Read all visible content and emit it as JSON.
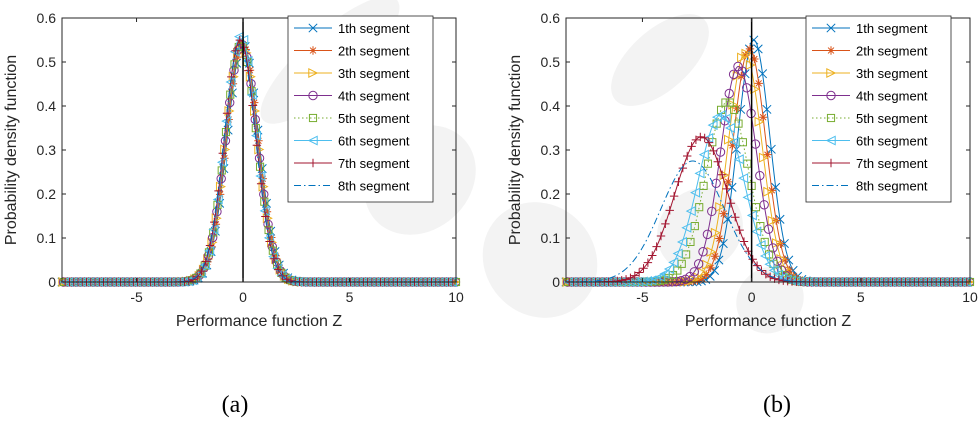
{
  "colors": {
    "axis": "#262626",
    "zero_line": "#000000",
    "series": [
      "#0072BD",
      "#D95319",
      "#EDB120",
      "#7E2F8E",
      "#77AC30",
      "#4DBEEE",
      "#A2142F",
      "#0072BD"
    ],
    "watermark": "#f2f2f2"
  },
  "chart_data": [
    {
      "panel_caption": "(a)",
      "type": "line",
      "xlabel": "Performance function Z",
      "ylabel": "Probability density function",
      "xlim": [
        -8.5,
        10
      ],
      "ylim": [
        0,
        0.6
      ],
      "xticks": [
        -5,
        0,
        5,
        10
      ],
      "xtick_labels": [
        "-5",
        "0",
        "5",
        "10"
      ],
      "yticks": [
        0,
        0.1,
        0.2,
        0.3,
        0.4,
        0.5,
        0.6
      ],
      "ytick_labels": [
        "0",
        "0.1",
        "0.2",
        "0.3",
        "0.4",
        "0.5",
        "0.6"
      ],
      "grid": false,
      "legend_position": "top-right",
      "vertical_line_x": 0,
      "series": [
        {
          "name": "1th segment",
          "marker": "x",
          "linestyle": "solid",
          "mean": 0.0,
          "std": 0.74,
          "peak": 0.54
        },
        {
          "name": "2th segment",
          "marker": "asterisk",
          "linestyle": "solid",
          "mean": -0.03,
          "std": 0.74,
          "peak": 0.54
        },
        {
          "name": "3th segment",
          "marker": "triangle-right",
          "linestyle": "solid",
          "mean": -0.05,
          "std": 0.74,
          "peak": 0.54
        },
        {
          "name": "4th segment",
          "marker": "circle",
          "linestyle": "solid",
          "mean": -0.07,
          "std": 0.74,
          "peak": 0.54
        },
        {
          "name": "5th segment",
          "marker": "square",
          "linestyle": "dotted",
          "mean": -0.09,
          "std": 0.74,
          "peak": 0.54
        },
        {
          "name": "6th segment",
          "marker": "triangle-left",
          "linestyle": "solid",
          "mean": -0.11,
          "std": 0.72,
          "peak": 0.56
        },
        {
          "name": "7th segment",
          "marker": "plus",
          "linestyle": "solid",
          "mean": -0.13,
          "std": 0.73,
          "peak": 0.55
        },
        {
          "name": "8th segment",
          "marker": "none",
          "linestyle": "dashdot",
          "mean": -0.15,
          "std": 0.74,
          "peak": 0.54
        }
      ]
    },
    {
      "panel_caption": "(b)",
      "type": "line",
      "xlabel": "Performance function Z",
      "ylabel": "Probability density function",
      "xlim": [
        -8.5,
        10
      ],
      "ylim": [
        0,
        0.6
      ],
      "xticks": [
        -5,
        0,
        5,
        10
      ],
      "xtick_labels": [
        "-5",
        "0",
        "5",
        "10"
      ],
      "yticks": [
        0,
        0.1,
        0.2,
        0.3,
        0.4,
        0.5,
        0.6
      ],
      "ytick_labels": [
        "0",
        "0.1",
        "0.2",
        "0.3",
        "0.4",
        "0.5",
        "0.6"
      ],
      "grid": false,
      "legend_position": "top-right",
      "vertical_line_x": 0,
      "series": [
        {
          "name": "1th segment",
          "marker": "x",
          "linestyle": "solid",
          "mean": 0.1,
          "std": 0.73,
          "peak": 0.55
        },
        {
          "name": "2th segment",
          "marker": "asterisk",
          "linestyle": "solid",
          "mean": -0.1,
          "std": 0.75,
          "peak": 0.53
        },
        {
          "name": "3th segment",
          "marker": "triangle-right",
          "linestyle": "solid",
          "mean": -0.3,
          "std": 0.77,
          "peak": 0.52
        },
        {
          "name": "4th segment",
          "marker": "circle",
          "linestyle": "solid",
          "mean": -0.6,
          "std": 0.82,
          "peak": 0.49
        },
        {
          "name": "5th segment",
          "marker": "square",
          "linestyle": "dotted",
          "mean": -1.1,
          "std": 0.98,
          "peak": 0.41
        },
        {
          "name": "6th segment",
          "marker": "triangle-left",
          "linestyle": "solid",
          "mean": -1.4,
          "std": 1.05,
          "peak": 0.38
        },
        {
          "name": "7th segment",
          "marker": "plus",
          "linestyle": "solid",
          "mean": -2.3,
          "std": 1.22,
          "peak": 0.33
        },
        {
          "name": "8th segment",
          "marker": "none",
          "linestyle": "dashdot",
          "mean": -2.7,
          "std": 1.45,
          "peak": 0.275
        }
      ]
    }
  ]
}
